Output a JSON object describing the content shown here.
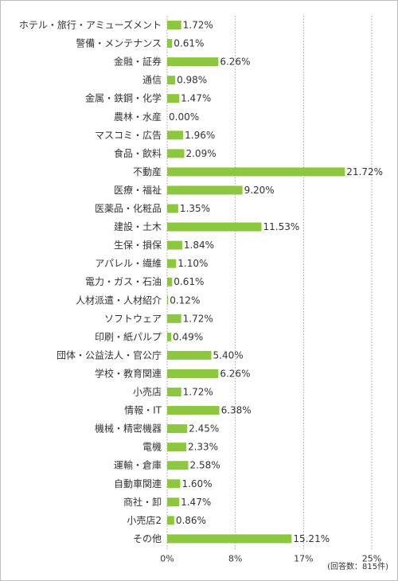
{
  "chart_data": {
    "type": "bar",
    "orientation": "horizontal",
    "bar_color": "#8dc63f",
    "grid": "dotted vertical",
    "xlim": [
      0,
      25
    ],
    "x_ticks": [
      {
        "value": 0,
        "label": "0%"
      },
      {
        "value": 8.33,
        "label": "8%"
      },
      {
        "value": 16.67,
        "label": "17%"
      },
      {
        "value": 25,
        "label": "25%"
      }
    ],
    "note": "(回答数：815件)",
    "categories": [
      "ホテル・旅行・アミューズメント",
      "警備・メンテナンス",
      "金融・証券",
      "通信",
      "金属・鉄鋼・化学",
      "農林・水産",
      "マスコミ・広告",
      "食品・飲料",
      "不動産",
      "医療・福祉",
      "医薬品・化粧品",
      "建設・土木",
      "生保・損保",
      "アパレル・繊維",
      "電力・ガス・石油",
      "人材派遣・人材紹介",
      "ソフトウェア",
      "印刷・紙パルプ",
      "団体・公益法人・官公庁",
      "学校・教育関連",
      "小売店",
      "情報・IT",
      "機械・精密機器",
      "電機",
      "運輸・倉庫",
      "自動車関連",
      "商社・卸",
      "小売店2",
      "その他"
    ],
    "values": [
      1.72,
      0.61,
      6.26,
      0.98,
      1.47,
      0.0,
      1.96,
      2.09,
      21.72,
      9.2,
      1.35,
      11.53,
      1.84,
      1.1,
      0.61,
      0.12,
      1.72,
      0.49,
      5.4,
      6.26,
      1.72,
      6.38,
      2.45,
      2.33,
      2.58,
      1.6,
      1.47,
      0.86,
      15.21
    ],
    "value_labels": [
      "1.72%",
      "0.61%",
      "6.26%",
      "0.98%",
      "1.47%",
      "0.00%",
      "1.96%",
      "2.09%",
      "21.72%",
      "9.20%",
      "1.35%",
      "11.53%",
      "1.84%",
      "1.10%",
      "0.61%",
      "0.12%",
      "1.72%",
      "0.49%",
      "5.40%",
      "6.26%",
      "1.72%",
      "6.38%",
      "2.45%",
      "2.33%",
      "2.58%",
      "1.60%",
      "1.47%",
      "0.86%",
      "15.21%"
    ]
  }
}
